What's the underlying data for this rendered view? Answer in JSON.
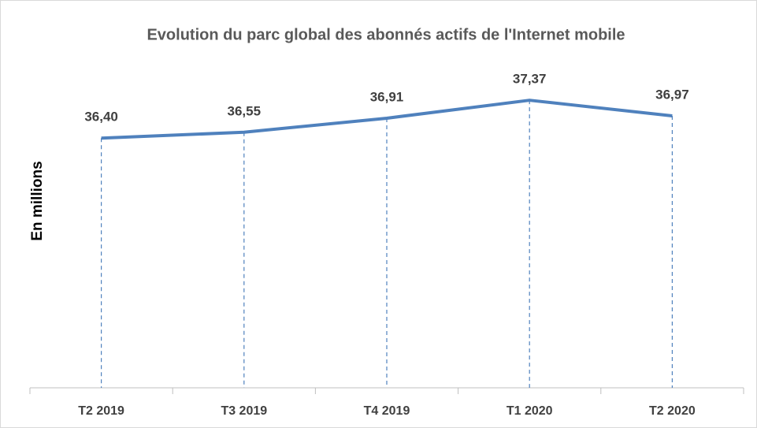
{
  "chart_data": {
    "type": "line",
    "title": "Evolution du parc global des abonnés actifs de l'Internet mobile",
    "y_label": "En millions",
    "categories": [
      "T2 2019",
      "T3 2019",
      "T4 2019",
      "T1 2020",
      "T2 2020"
    ],
    "values": [
      36.4,
      36.55,
      36.91,
      37.37,
      36.97
    ],
    "value_labels": [
      "36,40",
      "36,55",
      "36,91",
      "37,37",
      "36,97"
    ],
    "color": "#4f81bd",
    "ylim": [
      30,
      38
    ]
  }
}
